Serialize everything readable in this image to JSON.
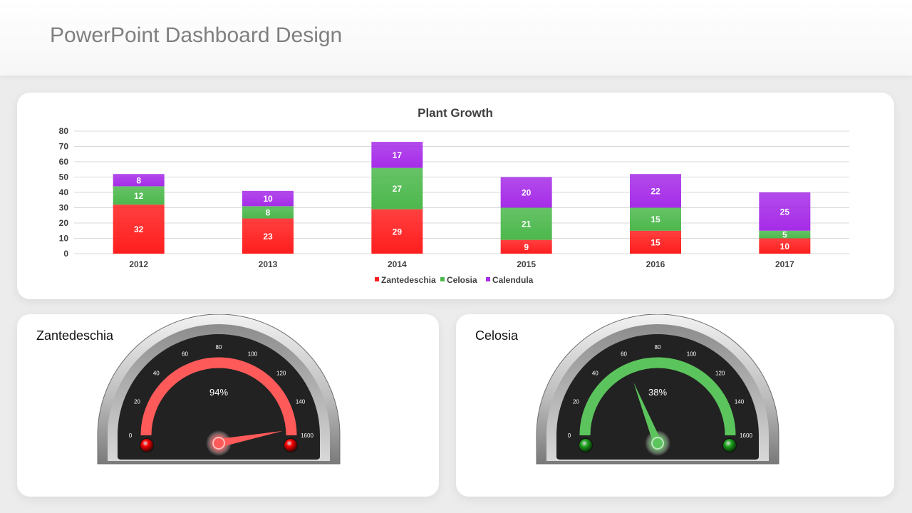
{
  "page": {
    "title": "PowerPoint Dashboard Design"
  },
  "chart_data": {
    "type": "bar",
    "stacked": true,
    "title": "Plant Growth",
    "categories": [
      "2012",
      "2013",
      "2014",
      "2015",
      "2016",
      "2017"
    ],
    "series": [
      {
        "name": "Zantedeschia",
        "color": "#ff1e1e",
        "values": [
          32,
          23,
          29,
          9,
          15,
          10
        ]
      },
      {
        "name": "Celosia",
        "color": "#4cb84c",
        "values": [
          12,
          8,
          27,
          21,
          15,
          5
        ]
      },
      {
        "name": "Calendula",
        "color": "#a62ce8",
        "values": [
          8,
          10,
          17,
          20,
          22,
          25
        ]
      }
    ],
    "ylim": [
      0,
      80
    ],
    "yticks": [
      0,
      10,
      20,
      30,
      40,
      50,
      60,
      70,
      80
    ],
    "grid": true,
    "legend": "bottom"
  },
  "gauges": [
    {
      "title": "Zantedeschia",
      "percent_label": "94%",
      "value_fraction": 0.94,
      "color": "#ff5a5a",
      "light_color": "#ff0000",
      "scale_labels": [
        "0",
        "20",
        "40",
        "60",
        "80",
        "100",
        "120",
        "140",
        "1600"
      ]
    },
    {
      "title": "Celosia",
      "percent_label": "38%",
      "value_fraction": 0.38,
      "color": "#5cc45c",
      "light_color": "#22aa22",
      "scale_labels": [
        "0",
        "20",
        "40",
        "60",
        "80",
        "100",
        "120",
        "140",
        "1600"
      ]
    }
  ]
}
